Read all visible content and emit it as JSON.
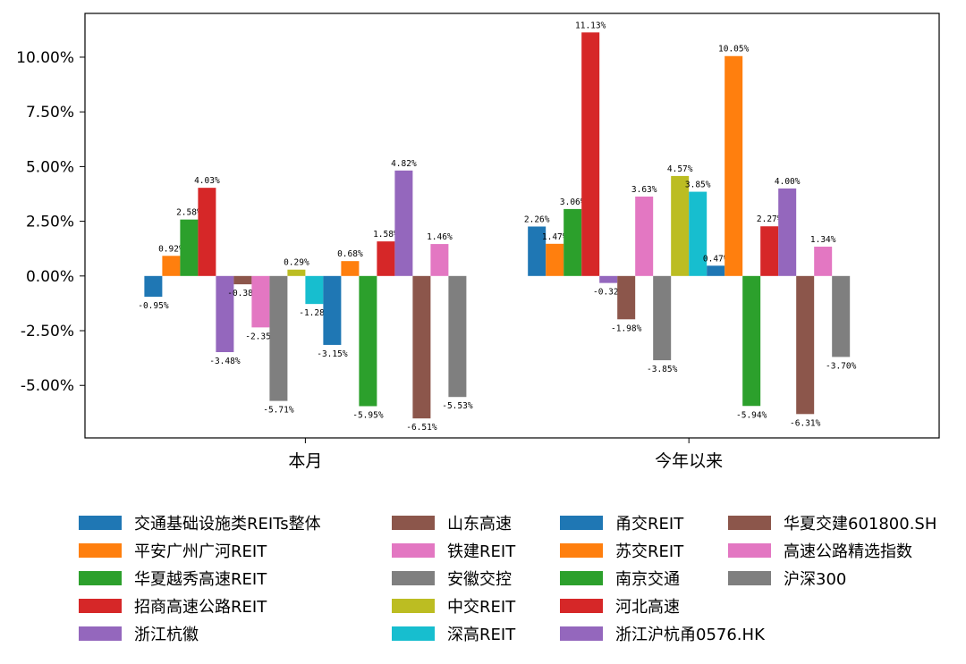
{
  "chart_data": {
    "type": "bar",
    "categories": [
      "本月",
      "今年以来"
    ],
    "yticks": [
      "-5.00%",
      "-2.50%",
      "0.00%",
      "2.50%",
      "5.00%",
      "7.50%",
      "10.00%"
    ],
    "ylim": [
      -7.4,
      12.0
    ],
    "series": [
      {
        "name": "交通基础设施类REITs整体",
        "color": "#1f77b4",
        "values": [
          -0.95,
          2.26
        ],
        "labels": [
          "-0.95%",
          "2.26%"
        ]
      },
      {
        "name": "平安广州广河REIT",
        "color": "#ff7f0e",
        "values": [
          0.92,
          1.47
        ],
        "labels": [
          "0.92%",
          "1.47%"
        ]
      },
      {
        "name": "华夏越秀高速REIT",
        "color": "#2ca02c",
        "values": [
          2.58,
          3.06
        ],
        "labels": [
          "2.58%",
          "3.06%"
        ]
      },
      {
        "name": "招商高速公路REIT",
        "color": "#d62728",
        "values": [
          4.03,
          11.13
        ],
        "labels": [
          "4.03%",
          "11.13%"
        ]
      },
      {
        "name": "浙江杭徽",
        "color": "#9467bd",
        "values": [
          -3.48,
          -0.32
        ],
        "labels": [
          "-3.48%",
          "-0.32%"
        ]
      },
      {
        "name": "山东高速",
        "color": "#8c564b",
        "values": [
          -0.38,
          -1.98
        ],
        "labels": [
          "-0.38%",
          "-1.98%"
        ]
      },
      {
        "name": "铁建REIT",
        "color": "#e377c2",
        "values": [
          -2.35,
          3.63
        ],
        "labels": [
          "-2.35%",
          "3.63%"
        ]
      },
      {
        "name": "安徽交控",
        "color": "#7f7f7f",
        "values": [
          -5.71,
          -3.85
        ],
        "labels": [
          "-5.71%",
          "-3.85%"
        ]
      },
      {
        "name": "中交REIT",
        "color": "#bcbd22",
        "values": [
          0.29,
          4.57
        ],
        "labels": [
          "0.29%",
          "4.57%"
        ]
      },
      {
        "name": "深高REIT",
        "color": "#17becf",
        "values": [
          -1.28,
          3.85
        ],
        "labels": [
          "-1.28%",
          "3.85%"
        ]
      },
      {
        "name": "甬交REIT",
        "color": "#1f77b4",
        "values": [
          -3.15,
          0.47
        ],
        "labels": [
          "-3.15%",
          "0.47%"
        ]
      },
      {
        "name": "苏交REIT",
        "color": "#ff7f0e",
        "values": [
          0.68,
          10.05
        ],
        "labels": [
          "0.68%",
          "10.05%"
        ]
      },
      {
        "name": "南京交通",
        "color": "#2ca02c",
        "values": [
          -5.95,
          -5.94
        ],
        "labels": [
          "-5.95%",
          "-5.94%"
        ]
      },
      {
        "name": "河北高速",
        "color": "#d62728",
        "values": [
          1.58,
          2.27
        ],
        "labels": [
          "1.58%",
          "2.27%"
        ]
      },
      {
        "name": "浙江沪杭甬0576.HK",
        "color": "#9467bd",
        "values": [
          4.82,
          4.0
        ],
        "labels": [
          "4.82%",
          "4.00%"
        ]
      },
      {
        "name": "华夏交建601800.SH",
        "color": "#8c564b",
        "values": [
          -6.51,
          -6.31
        ],
        "labels": [
          "-6.51%",
          "-6.31%"
        ]
      },
      {
        "name": "高速公路精选指数",
        "color": "#e377c2",
        "values": [
          1.46,
          1.34
        ],
        "labels": [
          "1.46%",
          "1.34%"
        ]
      },
      {
        "name": "沪深300",
        "color": "#7f7f7f",
        "values": [
          -5.53,
          -3.7
        ],
        "labels": [
          "-5.53%",
          "-3.70%"
        ]
      }
    ],
    "legend_position": "bottom",
    "grid": false
  }
}
